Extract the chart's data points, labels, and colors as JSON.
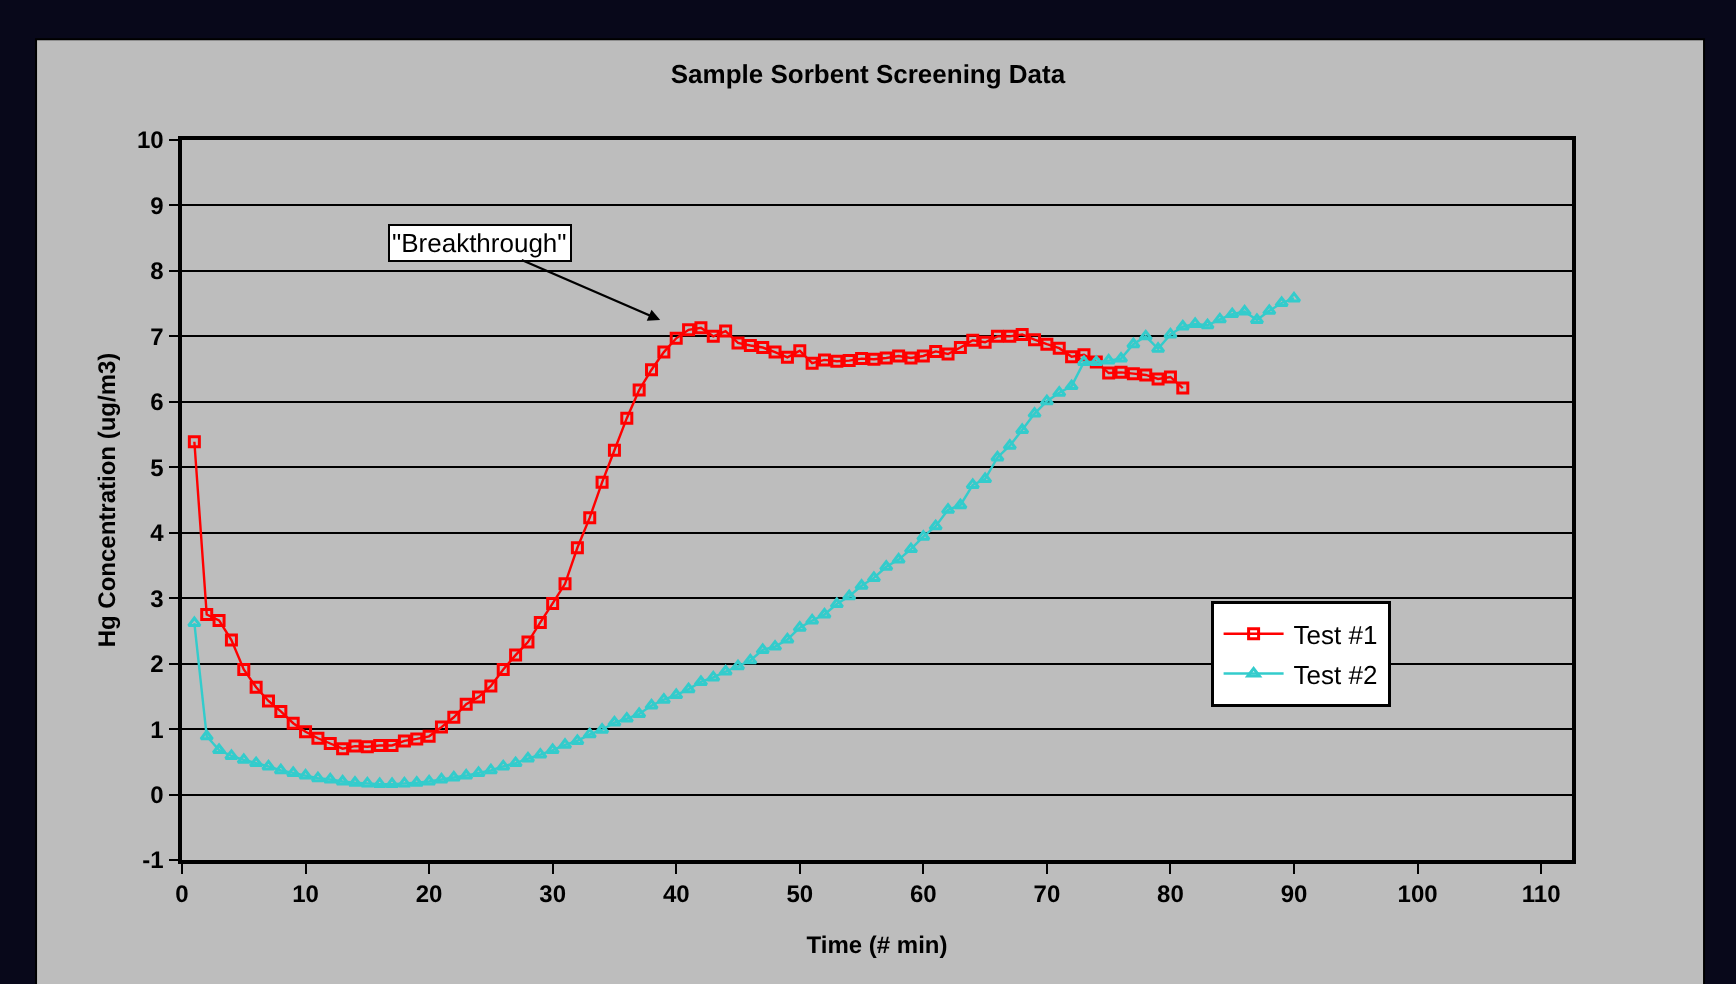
{
  "chart_data": {
    "type": "line",
    "title": "Sample Sorbent Screening Data",
    "xlabel": "Time (# min)",
    "ylabel": "Hg Concentration (ug/m3)",
    "xlim": [
      0,
      112.5
    ],
    "xticks": [
      0,
      10,
      20,
      30,
      40,
      50,
      60,
      70,
      80,
      90,
      100,
      110
    ],
    "ylim": [
      -1,
      10
    ],
    "yticks": [
      -1,
      0,
      1,
      2,
      3,
      4,
      5,
      6,
      7,
      8,
      9,
      10
    ],
    "grid": "y",
    "legend": "right",
    "annotations": [
      "\"Breakthrough\""
    ],
    "series": [
      {
        "name": "Test #1",
        "color": "#ff0000",
        "marker": "square",
        "x": [
          1,
          2,
          3,
          4,
          5,
          6,
          7,
          8,
          9,
          10,
          11,
          12,
          13,
          14,
          15,
          16,
          17,
          18,
          19,
          20,
          21,
          22,
          23,
          24,
          25,
          26,
          27,
          28,
          29,
          30,
          31,
          32,
          33,
          34,
          35,
          36,
          37,
          38,
          39,
          40,
          41,
          42,
          43,
          44,
          45,
          46,
          47,
          48,
          49,
          50,
          51,
          52,
          53,
          54,
          55,
          56,
          57,
          58,
          59,
          60,
          61,
          62,
          63,
          64,
          65,
          66,
          67,
          68,
          69,
          70,
          71,
          72,
          73,
          74,
          75,
          76,
          77,
          78,
          79,
          80,
          81
        ],
        "values": [
          5.39,
          2.75,
          2.66,
          2.36,
          1.91,
          1.64,
          1.43,
          1.27,
          1.09,
          0.96,
          0.86,
          0.78,
          0.7,
          0.74,
          0.73,
          0.75,
          0.75,
          0.82,
          0.85,
          0.89,
          1.03,
          1.18,
          1.38,
          1.49,
          1.66,
          1.91,
          2.13,
          2.33,
          2.63,
          2.92,
          3.22,
          3.77,
          4.23,
          4.77,
          5.26,
          5.75,
          6.18,
          6.49,
          6.76,
          6.97,
          7.1,
          7.13,
          7.0,
          7.08,
          6.9,
          6.86,
          6.83,
          6.76,
          6.68,
          6.78,
          6.59,
          6.64,
          6.62,
          6.63,
          6.66,
          6.65,
          6.67,
          6.7,
          6.67,
          6.7,
          6.77,
          6.73,
          6.83,
          6.94,
          6.91,
          7.0,
          7.0,
          7.03,
          6.95,
          6.88,
          6.82,
          6.69,
          6.72,
          6.61,
          6.44,
          6.45,
          6.43,
          6.41,
          6.35,
          6.38,
          6.21
        ]
      },
      {
        "name": "Test #2",
        "color": "#33cccc",
        "marker": "triangle",
        "x": [
          1,
          2,
          3,
          4,
          5,
          6,
          7,
          8,
          9,
          10,
          11,
          12,
          13,
          14,
          15,
          16,
          17,
          18,
          19,
          20,
          21,
          22,
          23,
          24,
          25,
          26,
          27,
          28,
          29,
          30,
          31,
          32,
          33,
          34,
          35,
          36,
          37,
          38,
          39,
          40,
          41,
          42,
          43,
          44,
          45,
          46,
          47,
          48,
          49,
          50,
          51,
          52,
          53,
          54,
          55,
          56,
          57,
          58,
          59,
          60,
          61,
          62,
          63,
          64,
          65,
          66,
          67,
          68,
          69,
          70,
          71,
          72,
          73,
          74,
          75,
          76,
          77,
          78,
          79,
          80,
          81,
          82,
          83,
          84,
          85,
          86,
          87,
          88,
          89,
          90
        ],
        "values": [
          2.62,
          0.89,
          0.68,
          0.59,
          0.53,
          0.48,
          0.43,
          0.37,
          0.33,
          0.29,
          0.25,
          0.23,
          0.2,
          0.18,
          0.17,
          0.16,
          0.16,
          0.17,
          0.18,
          0.2,
          0.23,
          0.26,
          0.29,
          0.33,
          0.37,
          0.43,
          0.48,
          0.55,
          0.61,
          0.68,
          0.76,
          0.82,
          0.92,
          0.99,
          1.1,
          1.16,
          1.23,
          1.36,
          1.45,
          1.52,
          1.61,
          1.72,
          1.79,
          1.88,
          1.96,
          2.05,
          2.21,
          2.26,
          2.37,
          2.55,
          2.66,
          2.75,
          2.91,
          3.03,
          3.19,
          3.31,
          3.48,
          3.59,
          3.75,
          3.94,
          4.1,
          4.35,
          4.42,
          4.73,
          4.82,
          5.15,
          5.33,
          5.57,
          5.82,
          6.01,
          6.14,
          6.24,
          6.61,
          6.61,
          6.63,
          6.66,
          6.88,
          7.0,
          6.81,
          7.03,
          7.15,
          7.19,
          7.17,
          7.26,
          7.34,
          7.38,
          7.25,
          7.39,
          7.51,
          7.58
        ]
      }
    ]
  }
}
